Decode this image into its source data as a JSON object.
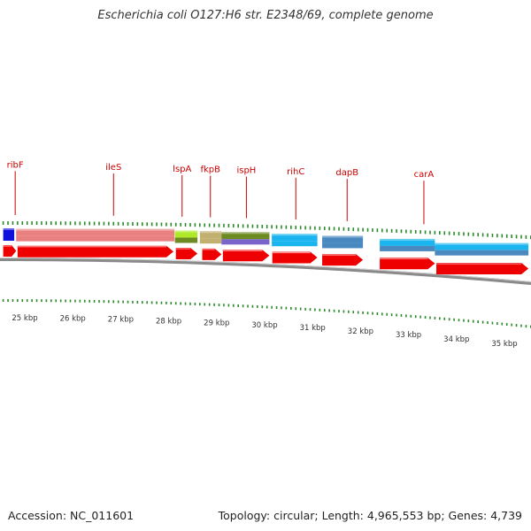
{
  "title": "Escherichia coli O127:H6 str. E2348/69, complete genome",
  "footer": {
    "accession": "Accession: NC_011601",
    "summary": "Topology: circular; Length: 4,965,553 bp; Genes: 4,739"
  },
  "colors": {
    "gene_label": "#cc0000",
    "tick": "#2a8a2a",
    "cds_arrow": "#ee0000",
    "backbone": "#8a8a8a"
  },
  "gene_labels": [
    {
      "name": "ribF",
      "kbp": 24.8
    },
    {
      "name": "ileS",
      "kbp": 26.85
    },
    {
      "name": "lspA",
      "kbp": 28.28
    },
    {
      "name": "fkpB",
      "kbp": 28.87
    },
    {
      "name": "ispH",
      "kbp": 29.62
    },
    {
      "name": "rihC",
      "kbp": 30.65
    },
    {
      "name": "dapB",
      "kbp": 31.72
    },
    {
      "name": "carA",
      "kbp": 33.32
    }
  ],
  "ruler_labels": [
    {
      "text": "25 kbp",
      "kbp": 25
    },
    {
      "text": "26 kbp",
      "kbp": 26
    },
    {
      "text": "27 kbp",
      "kbp": 27
    },
    {
      "text": "28 kbp",
      "kbp": 28
    },
    {
      "text": "29 kbp",
      "kbp": 29
    },
    {
      "text": "30 kbp",
      "kbp": 30
    },
    {
      "text": "31 kbp",
      "kbp": 31
    },
    {
      "text": "32 kbp",
      "kbp": 32
    },
    {
      "text": "33 kbp",
      "kbp": 33
    },
    {
      "text": "34 kbp",
      "kbp": 34
    },
    {
      "text": "35 kbp",
      "kbp": 35
    }
  ],
  "feature_blocks": [
    {
      "start": 24.55,
      "end": 24.78,
      "color": "#1010dd",
      "color2": "#1010dd"
    },
    {
      "start": 24.82,
      "end": 28.12,
      "color": "#e98080",
      "color2": "#e98080"
    },
    {
      "start": 28.13,
      "end": 28.6,
      "color": "#aeea2a",
      "color2": "#6e8a22"
    },
    {
      "start": 28.65,
      "end": 29.1,
      "color": "#c2b070",
      "color2": "#c2b070"
    },
    {
      "start": 29.1,
      "end": 30.1,
      "color": "#6e8a22",
      "color2": "#7a64cc"
    },
    {
      "start": 30.15,
      "end": 31.1,
      "color": "#1ab4ee",
      "color2": "#1ab4ee"
    },
    {
      "start": 31.2,
      "end": 32.05,
      "color": "#4a88c0",
      "color2": "#4a88c0"
    },
    {
      "start": 32.4,
      "end": 33.55,
      "color": "#1ab4ee",
      "color2": "#4a88c0"
    },
    {
      "start": 33.55,
      "end": 35.5,
      "color": "#1ab4ee",
      "color2": "#4a88c0"
    }
  ],
  "cds_arrows": [
    {
      "start": 24.55,
      "end": 24.82
    },
    {
      "start": 24.85,
      "end": 28.1
    },
    {
      "start": 28.15,
      "end": 28.6
    },
    {
      "start": 28.7,
      "end": 29.1
    },
    {
      "start": 29.13,
      "end": 30.1
    },
    {
      "start": 30.16,
      "end": 31.1
    },
    {
      "start": 31.2,
      "end": 32.05
    },
    {
      "start": 32.4,
      "end": 33.55
    },
    {
      "start": 33.58,
      "end": 35.5
    }
  ]
}
